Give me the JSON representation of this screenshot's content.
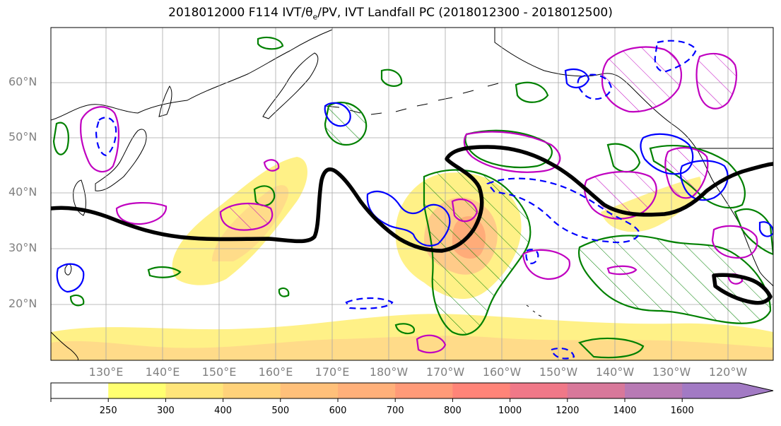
{
  "title": {
    "prefix": "2018012000 F114 IVT/",
    "theta": "θ",
    "theta_sub": "e",
    "suffix": "/PV, IVT Landfall PC (2018012300 - 2018012500)"
  },
  "latitude_labels": [
    "60°N",
    "50°N",
    "40°N",
    "30°N",
    "20°N"
  ],
  "longitude_labels": [
    "130°E",
    "140°E",
    "150°E",
    "160°E",
    "170°E",
    "180°W",
    "170°W",
    "160°W",
    "150°W",
    "140°W",
    "130°W",
    "120°W"
  ],
  "colorbar": {
    "ticks": [
      "250",
      "300",
      "400",
      "500",
      "600",
      "700",
      "800",
      "1000",
      "1200",
      "1400",
      "1600"
    ],
    "colors": [
      "#ffffff",
      "#ffff70",
      "#ffe57a",
      "#ffd27a",
      "#ffc07a",
      "#ffb07a",
      "#ff9a78",
      "#ff8478",
      "#f07888",
      "#d8789a",
      "#b87ab4",
      "#a27ac4"
    ]
  },
  "colors": {
    "coast": "#000000",
    "pv_contour": "#000000",
    "green_contour": "#008000",
    "blue_contour": "#0000ff",
    "magenta_contour": "#c000c0"
  }
}
